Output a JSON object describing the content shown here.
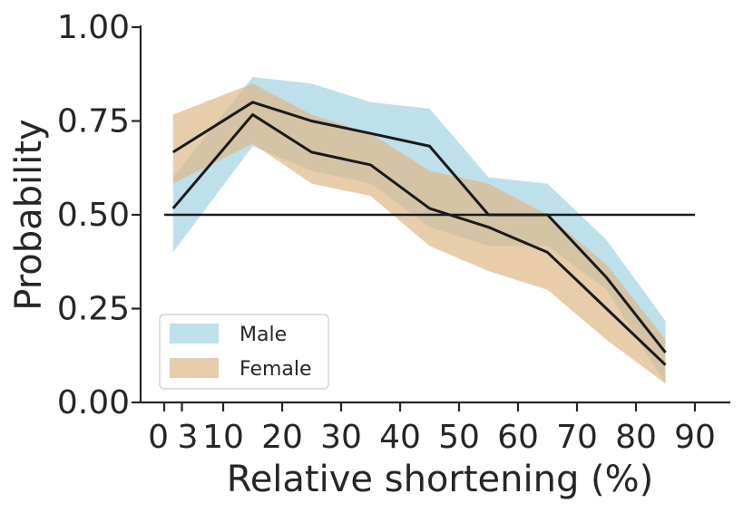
{
  "chart_data": {
    "type": "line",
    "xlabel": "Relative shortening (%)",
    "ylabel": "Probability",
    "xlim": [
      -4,
      96
    ],
    "ylim": [
      0,
      1
    ],
    "x_ticks": [
      0,
      3,
      10,
      20,
      30,
      40,
      50,
      60,
      70,
      80,
      90
    ],
    "x_tick_labels": [
      "0",
      "3",
      "10",
      "20",
      "30",
      "40",
      "50",
      "60",
      "70",
      "80",
      "90"
    ],
    "y_ticks": [
      0,
      0.25,
      0.5,
      0.75,
      1.0
    ],
    "y_tick_labels": [
      "0.00",
      "0.25",
      "0.50",
      "0.75",
      "1.00"
    ],
    "grid": false,
    "legend_position": "lower-left",
    "reference_line": {
      "y": 0.5,
      "x_range": [
        0,
        90
      ],
      "color": "#1a1a1a"
    },
    "series": [
      {
        "name": "Male",
        "color": "#add8e6",
        "line_color": "#1a1a1a",
        "x": [
          1.5,
          15,
          25,
          35,
          45,
          55,
          65,
          75,
          85
        ],
        "mean": [
          0.517,
          0.767,
          0.667,
          0.633,
          0.517,
          0.467,
          0.4,
          0.25,
          0.1
        ],
        "lower": [
          0.4,
          0.683,
          0.617,
          0.583,
          0.467,
          0.417,
          0.417,
          0.3,
          0.05
        ],
        "upper": [
          0.6,
          0.867,
          0.85,
          0.8,
          0.783,
          0.6,
          0.583,
          0.433,
          0.217
        ]
      },
      {
        "name": "Female",
        "color": "#deb887",
        "line_color": "#1a1a1a",
        "x": [
          1.5,
          15,
          25,
          35,
          45,
          55,
          65,
          75,
          85
        ],
        "mean": [
          0.667,
          0.8,
          0.75,
          0.717,
          0.683,
          0.5,
          0.5,
          0.333,
          0.133
        ],
        "lower": [
          0.583,
          0.69,
          0.583,
          0.55,
          0.417,
          0.35,
          0.3,
          0.167,
          0.05
        ],
        "upper": [
          0.767,
          0.85,
          0.767,
          0.717,
          0.617,
          0.583,
          0.5,
          0.367,
          0.167
        ]
      }
    ]
  }
}
